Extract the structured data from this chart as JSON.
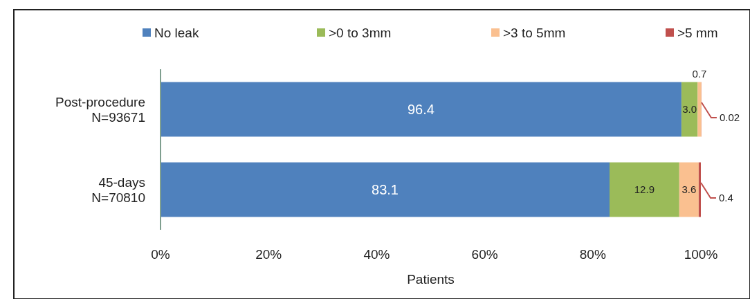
{
  "chart_data": {
    "type": "bar",
    "orientation": "horizontal",
    "stacked": true,
    "xlabel": "Patients",
    "categories": [
      "Post-procedure\nN=93671",
      "45-days\nN=70810"
    ],
    "series": [
      {
        "name": "No leak",
        "color": "#4f81bd",
        "values": [
          96.4,
          83.1
        ],
        "value_labels": [
          "96.4",
          "83.1"
        ]
      },
      {
        "name": ">0 to 3mm",
        "color": "#9bbb59",
        "values": [
          3.0,
          12.9
        ],
        "value_labels": [
          "3.0",
          "12.9"
        ]
      },
      {
        "name": ">3 to 5mm",
        "color": "#fac090",
        "values": [
          0.7,
          3.6
        ],
        "value_labels": [
          "0.7",
          "3.6"
        ]
      },
      {
        "name": ">5 mm",
        "color": "#c0504d",
        "values": [
          0.02,
          0.4
        ],
        "value_labels": [
          "0.02",
          "0.4"
        ]
      }
    ],
    "xlim": [
      0,
      100
    ],
    "xticks": [
      {
        "value": 0,
        "label": "0%"
      },
      {
        "value": 20,
        "label": "20%"
      },
      {
        "value": 40,
        "label": "40%"
      },
      {
        "value": 60,
        "label": "60%"
      },
      {
        "value": 80,
        "label": "80%"
      },
      {
        "value": 100,
        "label": "100%"
      }
    ],
    "grid": false,
    "legend": "top"
  }
}
